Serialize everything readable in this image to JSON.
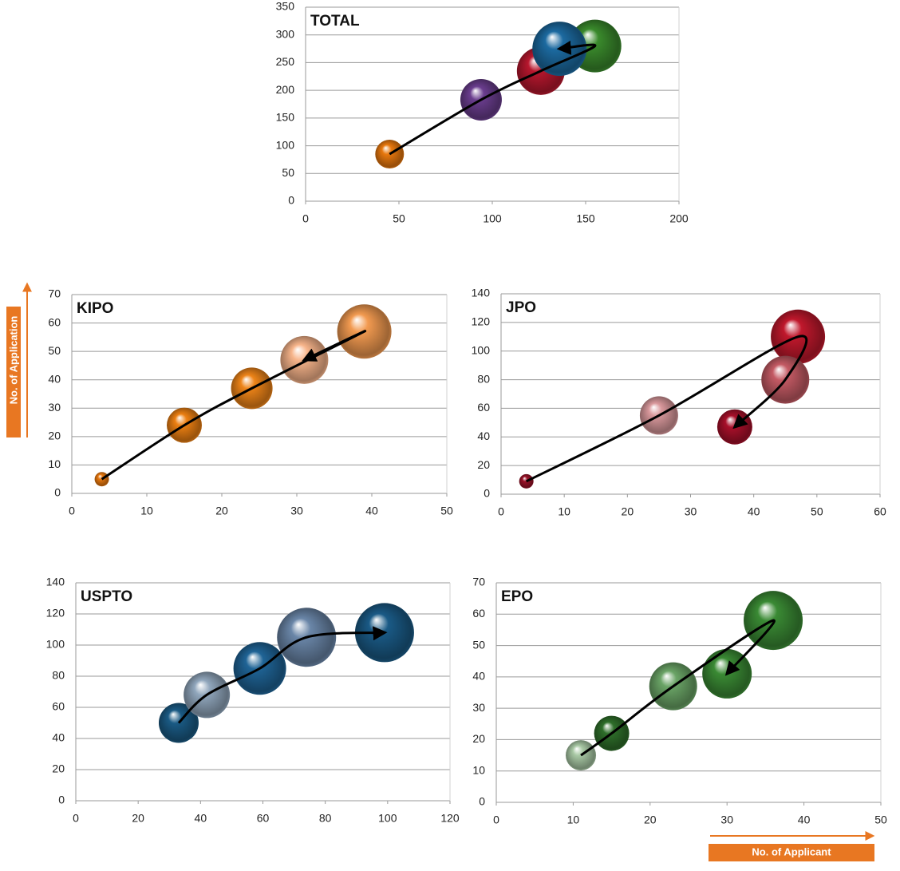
{
  "chart_data": [
    {
      "type": "bubble",
      "title": "TOTAL",
      "x": [
        45,
        94,
        126,
        155,
        136
      ],
      "values": [
        85,
        183,
        235,
        280,
        275
      ],
      "sizes": [
        18,
        26,
        30,
        33,
        34
      ],
      "colors": [
        "#e8780e",
        "#6a3d8e",
        "#b8172e",
        "#3a8a2c",
        "#1c6aa0"
      ],
      "xlim": [
        0,
        200
      ],
      "xticks": [
        0,
        50,
        100,
        150,
        200
      ],
      "ylim": [
        0,
        350
      ],
      "yticks": [
        0,
        50,
        100,
        150,
        200,
        250,
        300,
        350
      ],
      "grid": true
    },
    {
      "type": "bubble",
      "title": "KIPO",
      "y_label": "No. of Application",
      "x": [
        4,
        15,
        24,
        39,
        31
      ],
      "values": [
        5,
        24,
        37,
        57,
        47
      ],
      "sizes": [
        9,
        22,
        26,
        34,
        30
      ],
      "colors": [
        "#e8780e",
        "#ec7f12",
        "#ee8418",
        "#f29a50",
        "#f7b48a"
      ],
      "xlim": [
        0,
        50
      ],
      "xticks": [
        0,
        10,
        20,
        30,
        40,
        50
      ],
      "ylim": [
        0,
        70
      ],
      "yticks": [
        0,
        10,
        20,
        30,
        40,
        50,
        60,
        70
      ],
      "grid": true
    },
    {
      "type": "bubble",
      "title": "JPO",
      "x": [
        4,
        25,
        47,
        45,
        37
      ],
      "values": [
        9,
        55,
        110,
        80,
        47
      ],
      "sizes": [
        9,
        24,
        34,
        30,
        22
      ],
      "colors": [
        "#9a1228",
        "#d9989c",
        "#c0182c",
        "#c45a64",
        "#a8102a"
      ],
      "xlim": [
        0,
        60
      ],
      "xticks": [
        0,
        10,
        20,
        30,
        40,
        50,
        60
      ],
      "ylim": [
        0,
        140
      ],
      "yticks": [
        0,
        20,
        40,
        60,
        80,
        100,
        120,
        140
      ],
      "grid": true
    },
    {
      "type": "bubble",
      "title": "USPTO",
      "x": [
        33,
        42,
        59,
        74,
        99
      ],
      "values": [
        50,
        68,
        85,
        105,
        108
      ],
      "sizes": [
        25,
        29,
        33,
        37,
        37
      ],
      "colors": [
        "#1a5a84",
        "#90a6bc",
        "#1f6496",
        "#6a86a8",
        "#1a5a86"
      ],
      "xlim": [
        0,
        120
      ],
      "xticks": [
        0,
        20,
        40,
        60,
        80,
        100,
        120
      ],
      "ylim": [
        0,
        140
      ],
      "yticks": [
        0,
        20,
        40,
        60,
        80,
        100,
        120,
        140
      ],
      "grid": true
    },
    {
      "type": "bubble",
      "title": "EPO",
      "x_label": "No. of Applicant",
      "x": [
        11,
        15,
        23,
        36,
        30
      ],
      "values": [
        15,
        22,
        37,
        58,
        41
      ],
      "sizes": [
        19,
        22,
        30,
        37,
        31
      ],
      "colors": [
        "#a8c8a4",
        "#2e6e2a",
        "#6aa466",
        "#3a8a34",
        "#3a8a34"
      ],
      "xlim": [
        0,
        50
      ],
      "xticks": [
        0,
        10,
        20,
        30,
        40,
        50
      ],
      "ylim": [
        0,
        70
      ],
      "yticks": [
        0,
        10,
        20,
        30,
        40,
        50,
        60,
        70
      ],
      "grid": true
    }
  ]
}
